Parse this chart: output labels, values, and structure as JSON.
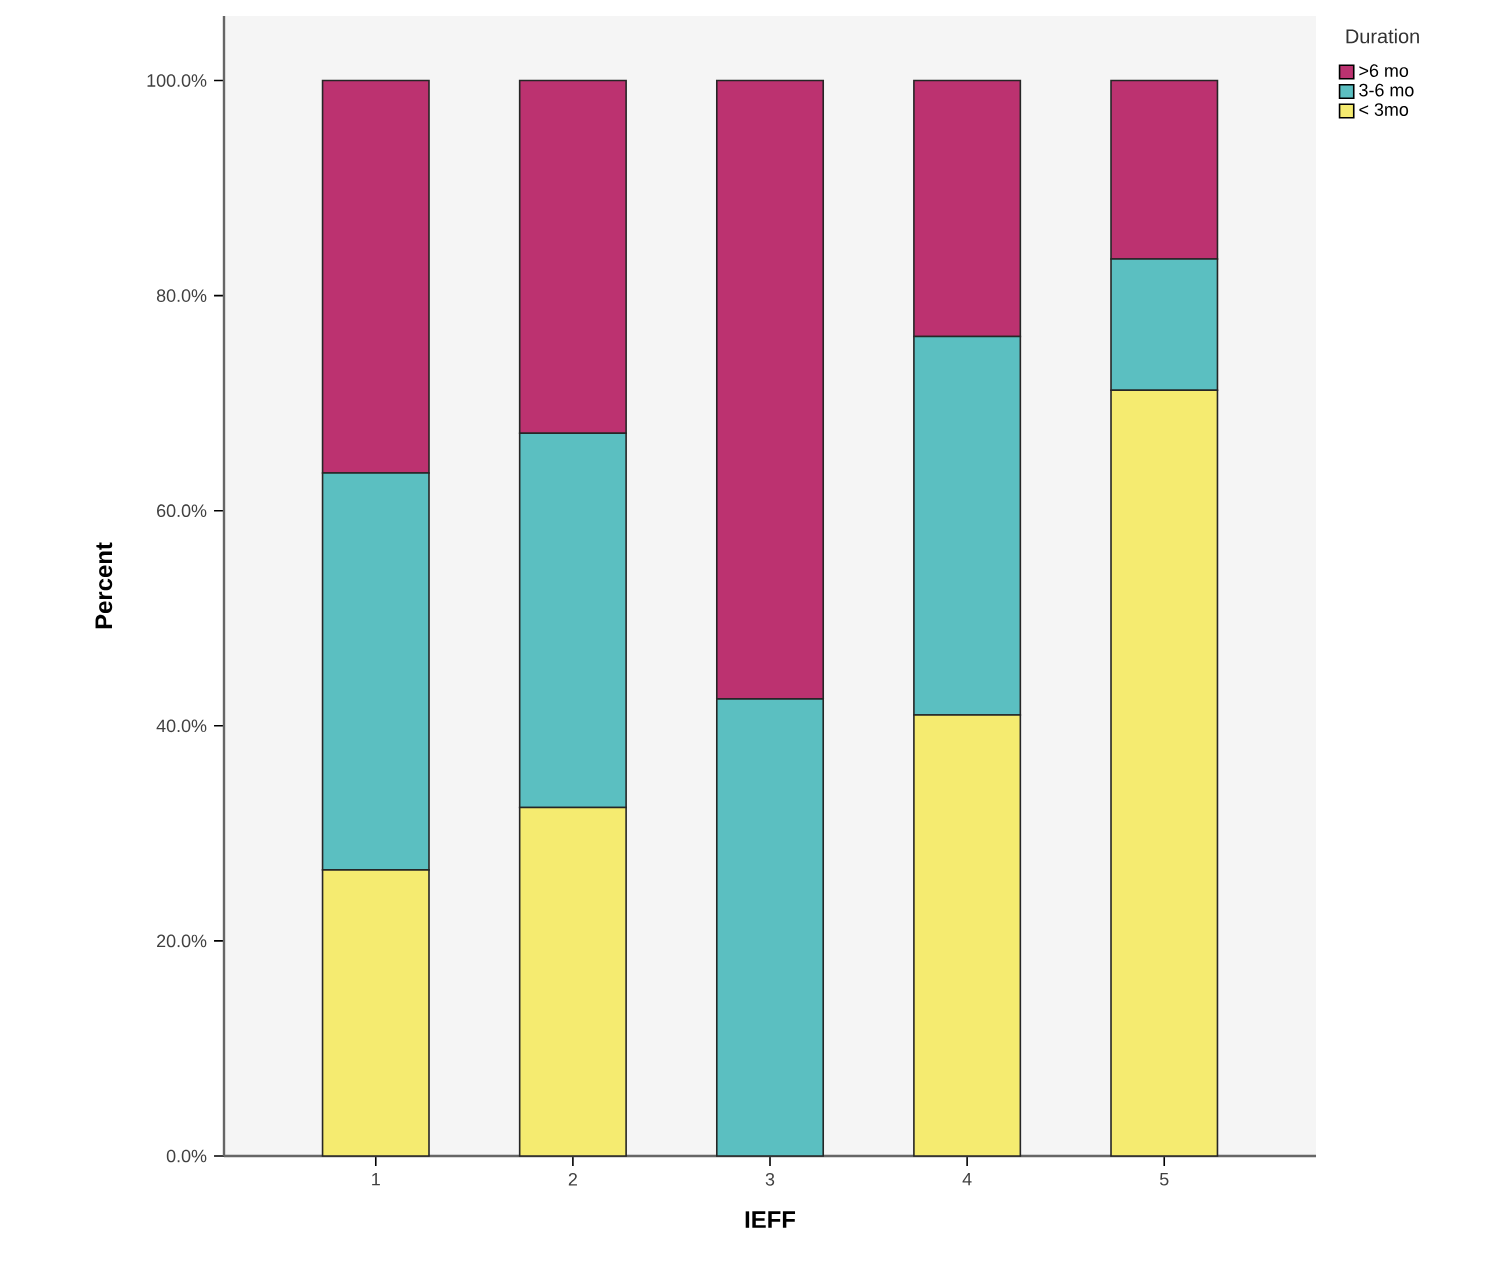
{
  "chart_data": {
    "type": "bar",
    "stacked": true,
    "xlabel": "IEFF",
    "ylabel": "Percent",
    "legend_title": "Duration",
    "legend": "right",
    "categories": [
      "1",
      "2",
      "3",
      "4",
      "5"
    ],
    "series": [
      {
        "name": "< 3mo",
        "color": "#f5eb70",
        "values": [
          26.6,
          32.4,
          0,
          41.0,
          71.2
        ]
      },
      {
        "name": "3-6 mo",
        "color": "#5bbfc1",
        "values": [
          36.9,
          34.8,
          42.5,
          35.2,
          12.2
        ]
      },
      {
        "name": ">6 mo",
        "color": "#bc3270",
        "values": [
          36.5,
          32.8,
          57.5,
          23.8,
          16.6
        ]
      }
    ],
    "ylim": [
      0,
      106
    ],
    "yticks": [
      {
        "value": 0,
        "label": "0.0%"
      },
      {
        "value": 20,
        "label": "20.0%"
      },
      {
        "value": 40,
        "label": "40.0%"
      },
      {
        "value": 60,
        "label": "60.0%"
      },
      {
        "value": 80,
        "label": "80.0%"
      },
      {
        "value": 100,
        "label": "100.0%"
      }
    ]
  }
}
